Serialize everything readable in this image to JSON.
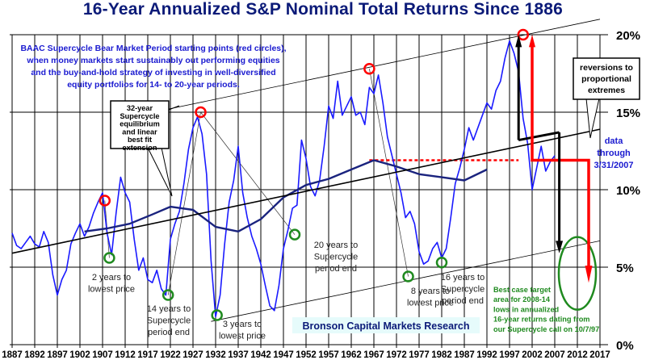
{
  "chart_data": {
    "type": "line",
    "title": "16-Year Annualized S&P Nominal Total Returns Since 1886",
    "xlabel": "",
    "ylabel": "",
    "xlim": [
      1887,
      2017
    ],
    "ylim": [
      0,
      20
    ],
    "x_ticks": [
      "1887",
      "1892",
      "1897",
      "1902",
      "1907",
      "1912",
      "1917",
      "1922",
      "1927",
      "1932",
      "1937",
      "1942",
      "1947",
      "1952",
      "1957",
      "1962",
      "1967",
      "1972",
      "1977",
      "1982",
      "1987",
      "1992",
      "1997",
      "2002",
      "2007",
      "2012",
      "2017"
    ],
    "y_ticks": [
      "0%",
      "5%",
      "10%",
      "15%",
      "20%"
    ],
    "grid": true,
    "series": [
      {
        "name": "16-year annualized nominal total return",
        "color": "#1a1aff",
        "x": [
          1887,
          1888,
          1889,
          1890,
          1891,
          1892,
          1893,
          1894,
          1895,
          1896,
          1897,
          1898,
          1899,
          1900,
          1901,
          1902,
          1903,
          1904,
          1905,
          1906,
          1907,
          1908,
          1909,
          1910,
          1911,
          1912,
          1913,
          1914,
          1915,
          1916,
          1917,
          1918,
          1919,
          1920,
          1921,
          1922,
          1923,
          1924,
          1925,
          1926,
          1927,
          1928,
          1929,
          1930,
          1931,
          1932,
          1933,
          1934,
          1935,
          1936,
          1937,
          1938,
          1939,
          1940,
          1941,
          1942,
          1943,
          1944,
          1945,
          1946,
          1947,
          1948,
          1949,
          1950,
          1951,
          1952,
          1953,
          1954,
          1955,
          1956,
          1957,
          1958,
          1959,
          1960,
          1961,
          1962,
          1963,
          1964,
          1965,
          1966,
          1967,
          1968,
          1969,
          1970,
          1971,
          1972,
          1973,
          1974,
          1975,
          1976,
          1977,
          1978,
          1979,
          1980,
          1981,
          1982,
          1983,
          1984,
          1985,
          1986,
          1987,
          1988,
          1989,
          1990,
          1991,
          1992,
          1993,
          1994,
          1995,
          1996,
          1997,
          1998,
          1999,
          2000,
          2001,
          2002,
          2003,
          2004,
          2005,
          2006,
          2007
        ],
        "y": [
          7.2,
          6.4,
          6.2,
          6.6,
          7.0,
          6.5,
          6.3,
          7.3,
          6.6,
          4.5,
          3.2,
          4.2,
          4.8,
          6.5,
          7.2,
          7.8,
          7.0,
          7.6,
          8.5,
          9.2,
          9.8,
          7.2,
          5.8,
          8.5,
          10.8,
          9.8,
          9.2,
          6.8,
          4.8,
          5.6,
          4.2,
          4.0,
          4.8,
          3.6,
          3.2,
          6.8,
          7.8,
          8.6,
          10.4,
          12.6,
          14.0,
          14.7,
          13.6,
          11.0,
          5.4,
          1.8,
          3.2,
          6.5,
          9.2,
          10.6,
          12.8,
          9.8,
          8.2,
          7.0,
          6.2,
          5.2,
          3.8,
          2.5,
          2.2,
          3.8,
          6.2,
          7.4,
          8.8,
          9.0,
          13.2,
          12.0,
          10.2,
          9.6,
          10.6,
          12.8,
          15.4,
          14.6,
          17.0,
          14.8,
          15.4,
          16.0,
          14.8,
          15.0,
          14.2,
          16.6,
          16.2,
          17.4,
          15.6,
          13.4,
          12.2,
          11.0,
          9.8,
          8.2,
          8.6,
          7.8,
          6.0,
          5.2,
          5.4,
          6.2,
          6.6,
          5.6,
          6.2,
          8.2,
          10.4,
          11.4,
          12.6,
          14.0,
          13.2,
          14.0,
          14.8,
          15.6,
          15.2,
          16.4,
          17.0,
          18.5,
          19.6,
          18.8,
          17.6,
          14.6,
          13.0,
          10.0,
          11.4,
          12.8,
          11.2,
          11.8,
          12.2
        ]
      },
      {
        "name": "32-year Supercycle equilibrium",
        "color": "#1a237e",
        "x": [
          1903,
          1908,
          1913,
          1918,
          1922,
          1927,
          1932,
          1937,
          1942,
          1947,
          1952,
          1957,
          1962,
          1967,
          1972,
          1977,
          1982,
          1987,
          1992
        ],
        "y": [
          7.3,
          7.5,
          7.8,
          8.4,
          8.9,
          8.7,
          7.6,
          7.3,
          8.1,
          9.5,
          10.3,
          10.7,
          11.3,
          11.9,
          11.5,
          11.0,
          10.8,
          10.6,
          11.3
        ]
      },
      {
        "name": "Linear best fit extension",
        "color": "#000000",
        "x": [
          1887,
          2017
        ],
        "y": [
          5.9,
          13.9
        ]
      }
    ],
    "annotations": {
      "intro": "BAAC Supercycle Bear Market Period starting points (red circles), when money markets start sustainably out performing equities and the buy-and-hold strategy of investing in well-diversified equity portfolios for 14- to 20-year periods.",
      "intro_lines": [
        "BAAC Supercycle Bear Market Period starting points (red circles),",
        "when money markets start sustainably out performing equities",
        "and the buy-and-hold strategy of investing in well-diversified",
        "equity portfolios for 14- to 20-year periods."
      ],
      "equilibrium_box": [
        "32-year",
        "Supercycle",
        "equilibrium",
        "and linear",
        "best fit",
        "extension"
      ],
      "reversions_box": [
        "reversions to",
        "proportional",
        "extremes"
      ],
      "data_through": [
        "data",
        "through",
        "3/31/2007"
      ],
      "notes": [
        {
          "lines": [
            "2 years to",
            "lowest price"
          ]
        },
        {
          "lines": [
            "14 years to",
            "Supercycle",
            "period end"
          ]
        },
        {
          "lines": [
            "3 years to",
            "lowest price"
          ]
        },
        {
          "lines": [
            "20 years to",
            "Supercycle",
            "period end"
          ]
        },
        {
          "lines": [
            "8 years to",
            "lowest price"
          ]
        },
        {
          "lines": [
            "16 years to",
            "Supercycle",
            "period end"
          ]
        }
      ],
      "target_note": [
        "Best case target",
        "area for 2008-14",
        "lows in annualized",
        "16-year returns dating from",
        "our Supercycle call  on 10/7/97"
      ],
      "source": "Bronson Capital Markets Research"
    },
    "red_circles": [
      {
        "x": 1907.5,
        "y": 9.3
      },
      {
        "x": 1928.7,
        "y": 15.0
      },
      {
        "x": 1966,
        "y": 17.8
      },
      {
        "x": 2000,
        "y": 20.0
      }
    ],
    "green_circles": [
      {
        "x": 1908.5,
        "y": 5.6
      },
      {
        "x": 1921.5,
        "y": 3.2
      },
      {
        "x": 1932.3,
        "y": 1.9
      },
      {
        "x": 1949.5,
        "y": 7.1
      },
      {
        "x": 1974.6,
        "y": 4.4
      },
      {
        "x": 1982,
        "y": 5.3
      }
    ]
  },
  "colors": {
    "title": "#0b1a78",
    "series": "#1a1aff",
    "equilibrium": "#1a237e",
    "red": "#ff0000",
    "green": "#1f8a1f",
    "note_blue": "#1a1ad0",
    "source_bg": "#e6fbfb"
  }
}
